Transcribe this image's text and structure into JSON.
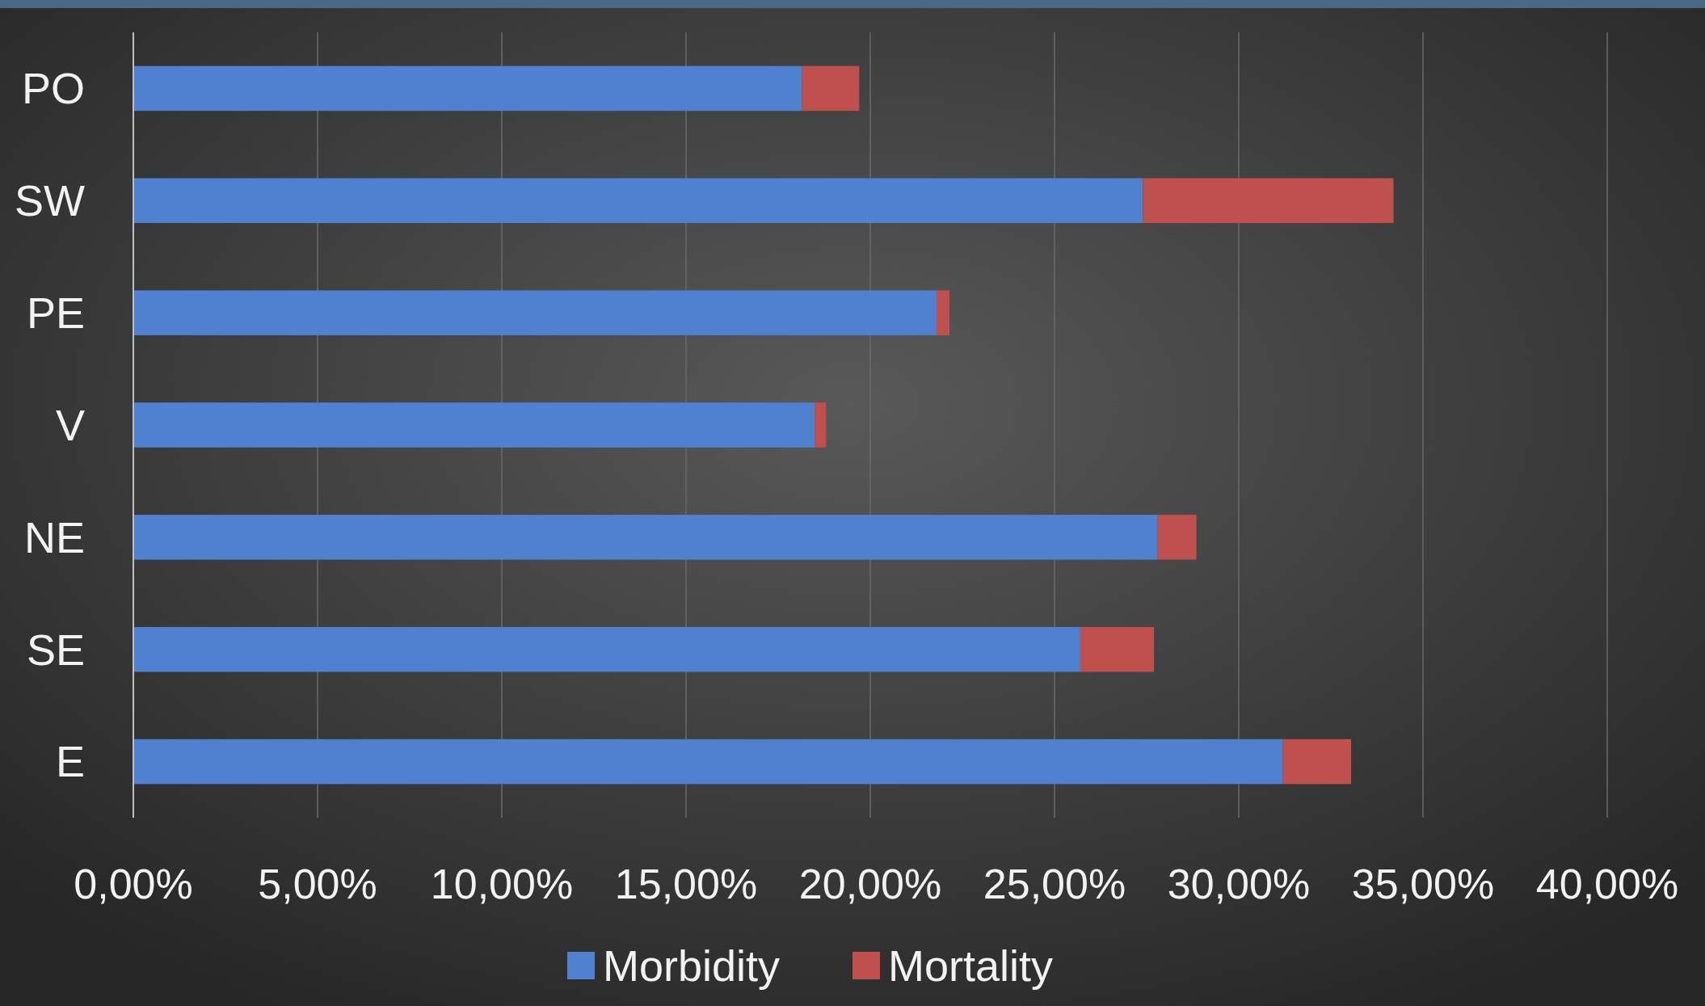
{
  "chart_data": {
    "type": "bar",
    "orientation": "horizontal",
    "stacked": true,
    "categories": [
      "PO",
      "SW",
      "PE",
      "V",
      "NE",
      "SE",
      "E"
    ],
    "series": [
      {
        "name": "Morbidity",
        "color": "#4f81d0",
        "values": [
          18.15,
          27.4,
          21.8,
          18.5,
          27.8,
          25.7,
          31.2
        ]
      },
      {
        "name": "Mortality",
        "color": "#c0504d",
        "values": [
          1.55,
          6.8,
          0.35,
          0.3,
          1.05,
          2.0,
          1.85
        ]
      }
    ],
    "xlim": [
      0,
      40
    ],
    "xticks": [
      {
        "value": 0,
        "label": "0,00%"
      },
      {
        "value": 5,
        "label": "5,00%"
      },
      {
        "value": 10,
        "label": "10,00%"
      },
      {
        "value": 15,
        "label": "15,00%"
      },
      {
        "value": 20,
        "label": "20,00%"
      },
      {
        "value": 25,
        "label": "25,00%"
      },
      {
        "value": 30,
        "label": "30,00%"
      },
      {
        "value": 35,
        "label": "35,00%"
      },
      {
        "value": 40,
        "label": "40,00%"
      }
    ],
    "grid": "x",
    "legend": "bottom"
  }
}
